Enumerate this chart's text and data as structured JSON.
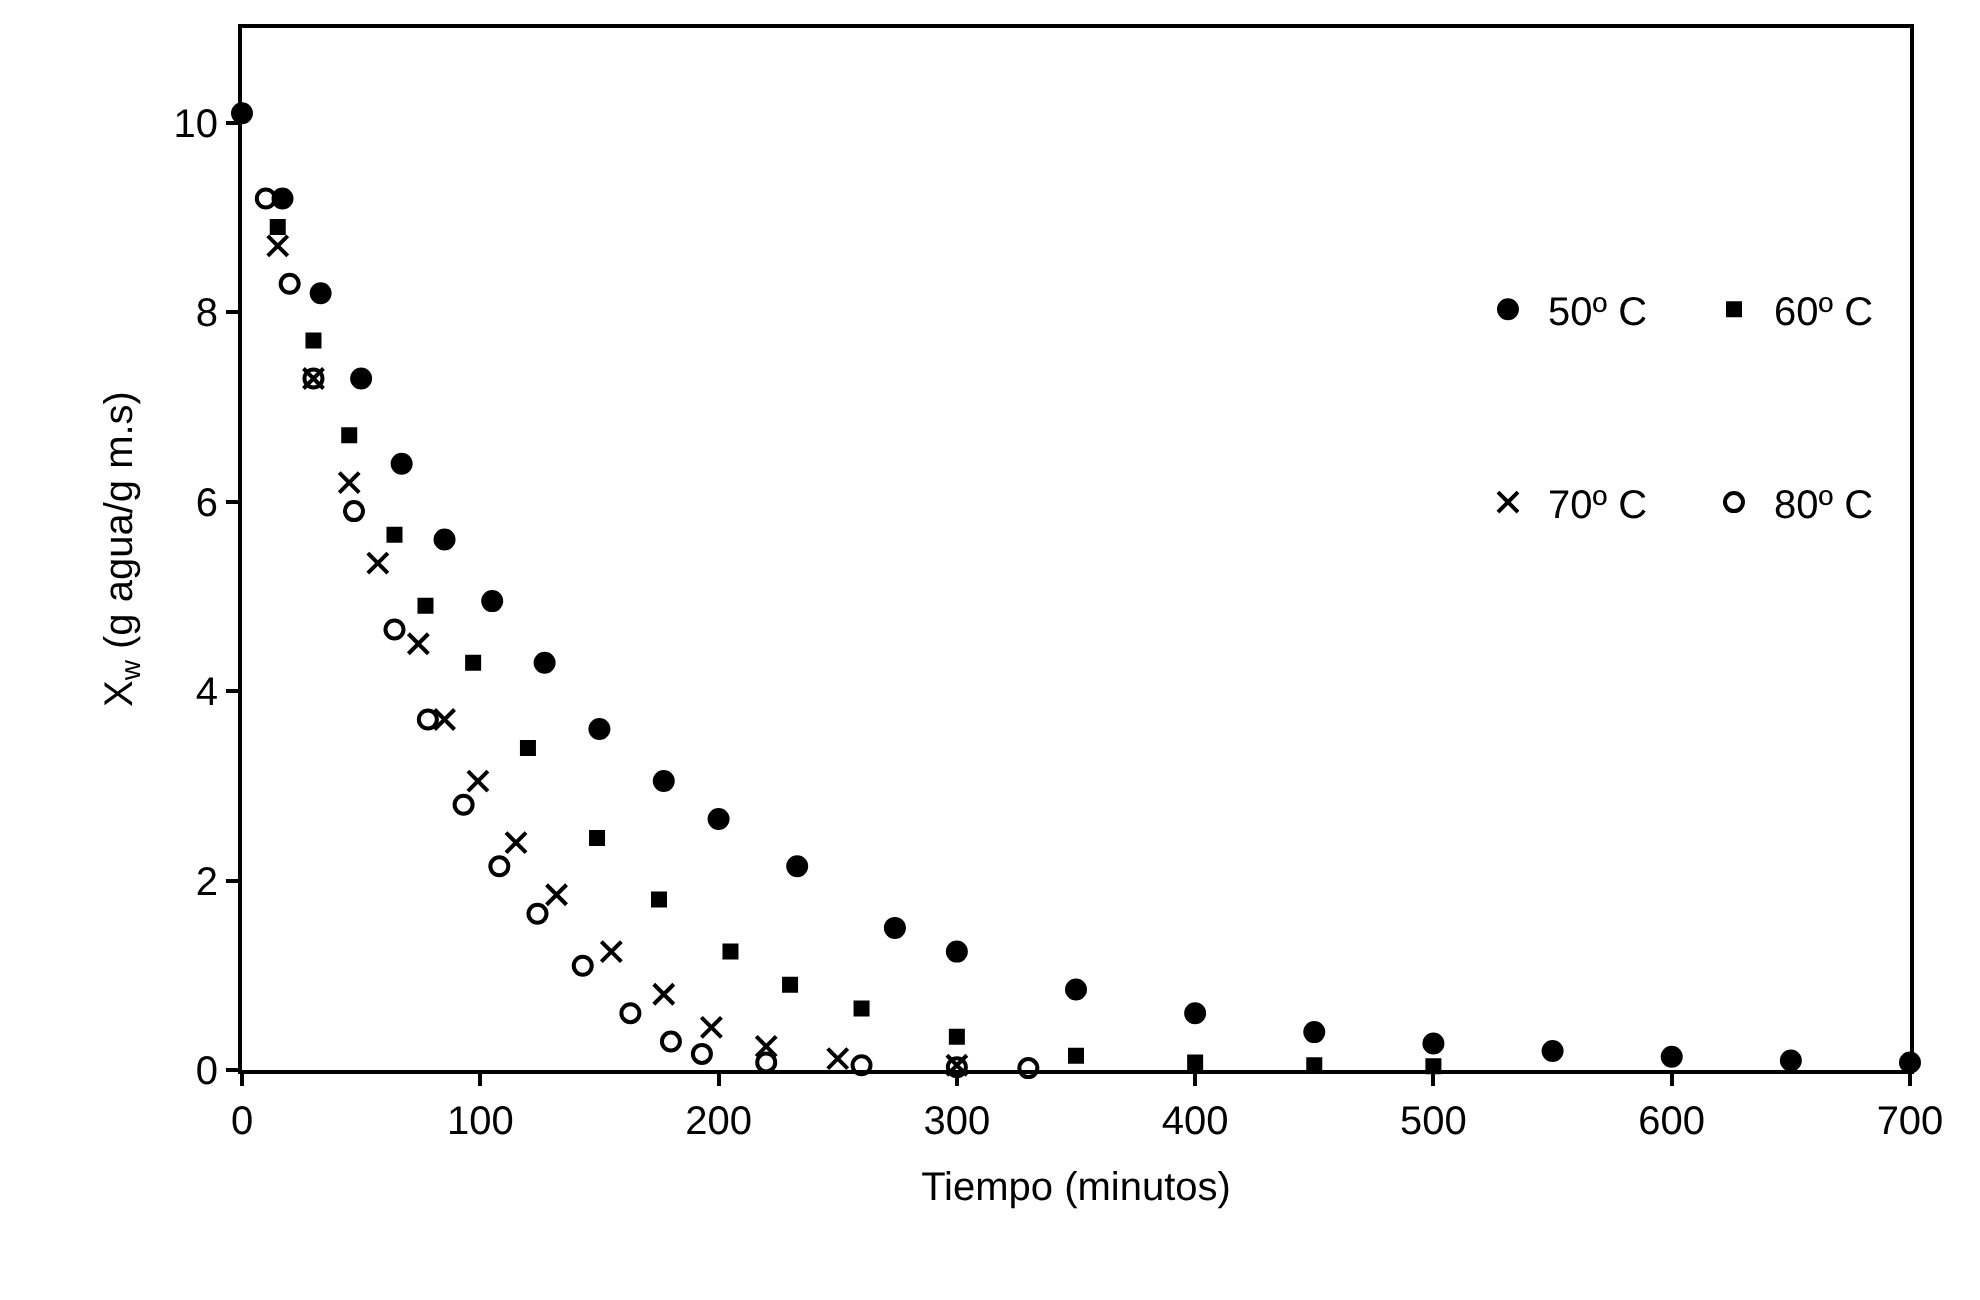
{
  "chart_data": {
    "type": "scatter",
    "xlabel": "Tiempo (minutos)",
    "ylabel": "X$_{w}$ (g agua/g m.s)",
    "xlim": [
      0,
      700
    ],
    "xticks": [
      0,
      100,
      200,
      300,
      400,
      500,
      600,
      700
    ],
    "ylim": [
      0,
      11
    ],
    "yticks": [
      0,
      2,
      4,
      6,
      8,
      10
    ],
    "legend": "top right",
    "series": [
      {
        "name": "50º C",
        "color": "#000000",
        "marker": "circle",
        "x": [
          0,
          17,
          33,
          50,
          67,
          85,
          105,
          127,
          150,
          177,
          200,
          233,
          274,
          300,
          350,
          400,
          450,
          500,
          550,
          600,
          650,
          700
        ],
        "values": [
          10.1,
          9.2,
          8.2,
          7.3,
          6.4,
          5.6,
          4.95,
          4.3,
          3.6,
          3.05,
          2.65,
          2.15,
          1.5,
          1.25,
          0.85,
          0.6,
          0.4,
          0.28,
          0.2,
          0.14,
          0.1,
          0.08
        ]
      },
      {
        "name": "60º C",
        "color": "#000000",
        "marker": "square",
        "x": [
          15,
          30,
          45,
          64,
          77,
          97,
          120,
          149,
          175,
          205,
          230,
          260,
          300,
          350,
          400,
          450,
          500
        ],
        "values": [
          8.9,
          7.7,
          6.7,
          5.65,
          4.9,
          4.3,
          3.4,
          2.45,
          1.8,
          1.25,
          0.9,
          0.65,
          0.35,
          0.15,
          0.08,
          0.05,
          0.04
        ]
      },
      {
        "name": "70º C",
        "color": "#000000",
        "marker": "cross",
        "x": [
          15,
          30,
          45,
          57,
          74,
          85,
          99,
          115,
          132,
          155,
          177,
          197,
          220,
          250,
          300
        ],
        "values": [
          8.7,
          7.3,
          6.2,
          5.35,
          4.5,
          3.7,
          3.05,
          2.4,
          1.85,
          1.25,
          0.8,
          0.45,
          0.25,
          0.12,
          0.05
        ]
      },
      {
        "name": "80º C",
        "color": "#000000",
        "marker": "circle-open",
        "x": [
          10,
          20,
          30,
          47,
          64,
          78,
          93,
          108,
          124,
          143,
          163,
          180,
          193,
          220,
          260,
          300,
          330
        ],
        "values": [
          9.2,
          8.3,
          7.3,
          5.9,
          4.65,
          3.7,
          2.8,
          2.15,
          1.65,
          1.1,
          0.6,
          0.3,
          0.17,
          0.08,
          0.05,
          0.03,
          0.02
        ]
      }
    ]
  }
}
